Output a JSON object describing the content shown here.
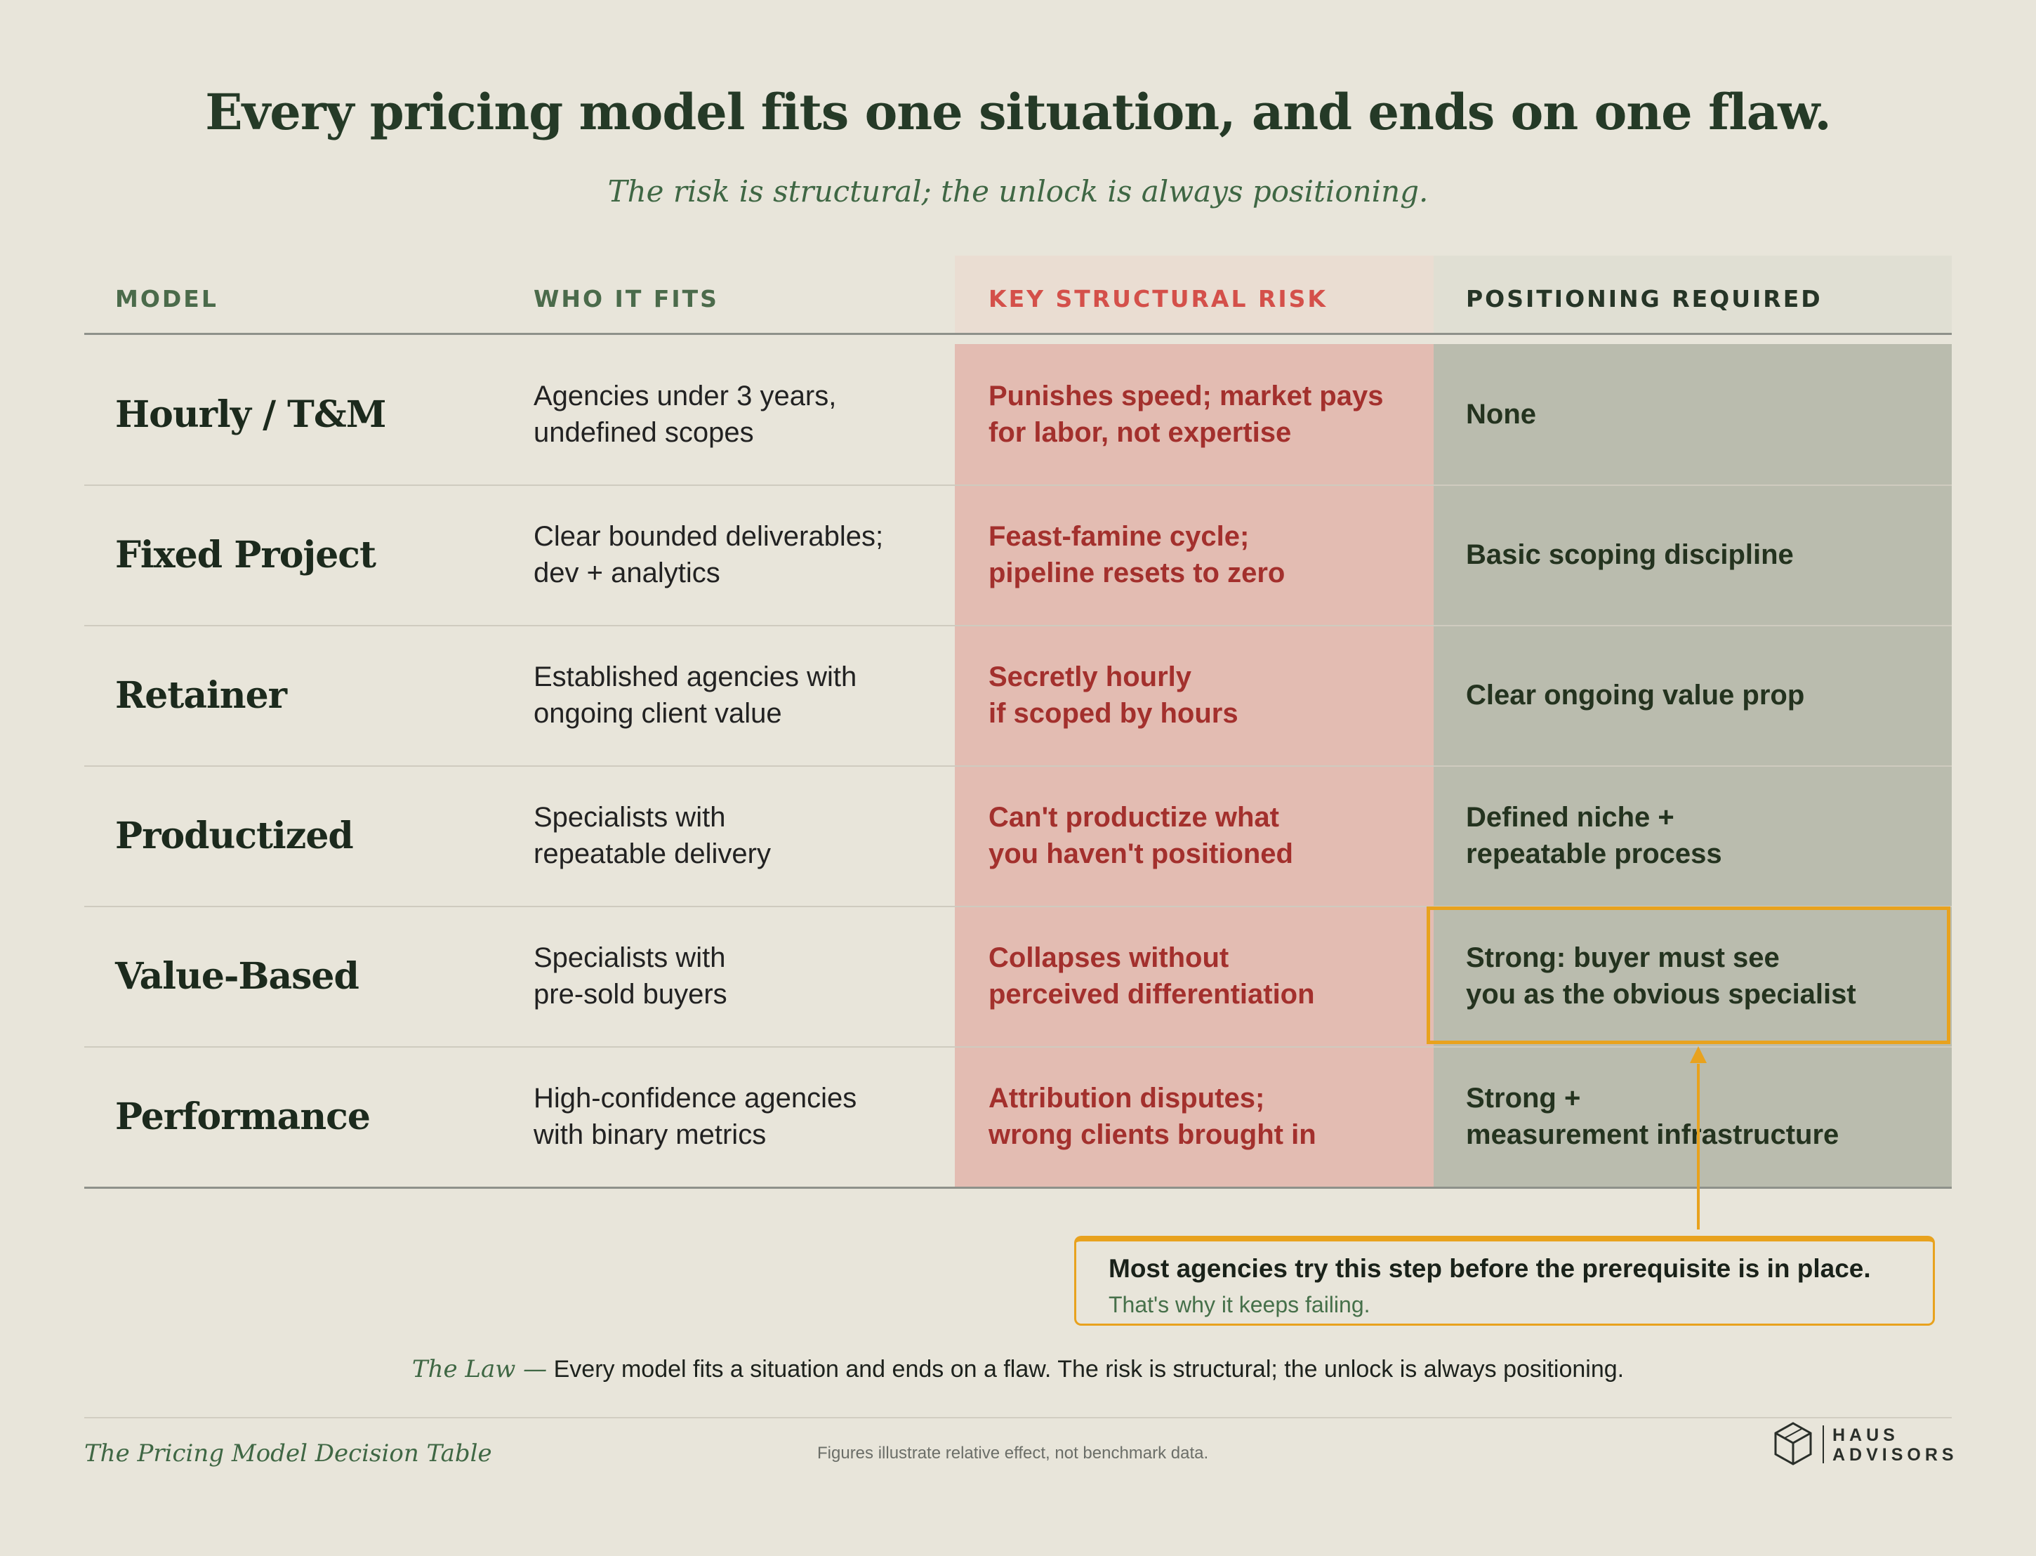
{
  "header": {
    "title": "Every pricing model fits one situation, and ends on one flaw.",
    "subtitle": "The risk is structural; the unlock is always positioning."
  },
  "table": {
    "columns": [
      "MODEL",
      "WHO IT FITS",
      "KEY STRUCTURAL RISK",
      "POSITIONING REQUIRED"
    ],
    "rows": [
      {
        "model": "Hourly / T&M",
        "fits": "Agencies under 3 years,\nundefined scopes",
        "risk": "Punishes speed; market pays\nfor labor, not expertise",
        "positioning": "None"
      },
      {
        "model": "Fixed Project",
        "fits": "Clear bounded deliverables;\ndev + analytics",
        "risk": "Feast-famine cycle;\npipeline resets to zero",
        "positioning": "Basic scoping discipline"
      },
      {
        "model": "Retainer",
        "fits": "Established agencies with\nongoing client value",
        "risk": "Secretly hourly\nif scoped by hours",
        "positioning": "Clear ongoing value prop"
      },
      {
        "model": "Productized",
        "fits": "Specialists with\nrepeatable delivery",
        "risk": "Can't productize what\nyou haven't positioned",
        "positioning": "Defined niche +\nrepeatable process"
      },
      {
        "model": "Value-Based",
        "fits": "Specialists with\npre-sold buyers",
        "risk": "Collapses without\nperceived differentiation",
        "positioning": "Strong: buyer must see\nyou as the obvious specialist"
      },
      {
        "model": "Performance",
        "fits": "High-confidence agencies\nwith binary metrics",
        "risk": "Attribution disputes;\nwrong clients brought in",
        "positioning": "Strong +\nmeasurement infrastructure"
      }
    ],
    "highlighted_row": 4
  },
  "callout": {
    "title": "Most agencies try this step before the prerequisite is in place.",
    "subtitle": "That's why it keeps failing."
  },
  "law": {
    "label": "The Law —",
    "text": "Every model fits a situation and ends on a flaw. The risk is structural; the unlock is always positioning."
  },
  "footer": {
    "left": "The Pricing Model Decision Table",
    "note": "Figures illustrate relative effect, not benchmark data.",
    "logo_line1": "HAUS",
    "logo_line2": "ADVISORS"
  },
  "colors": {
    "background": "#e8e5da",
    "risk_band": "#e3bcb2",
    "positioning_band": "#babcae",
    "accent": "#e8a21e",
    "risk_text": "#a3302d"
  },
  "icons": {
    "logo": "hexagon-cube-icon",
    "pointer": "arrow-up-icon"
  }
}
